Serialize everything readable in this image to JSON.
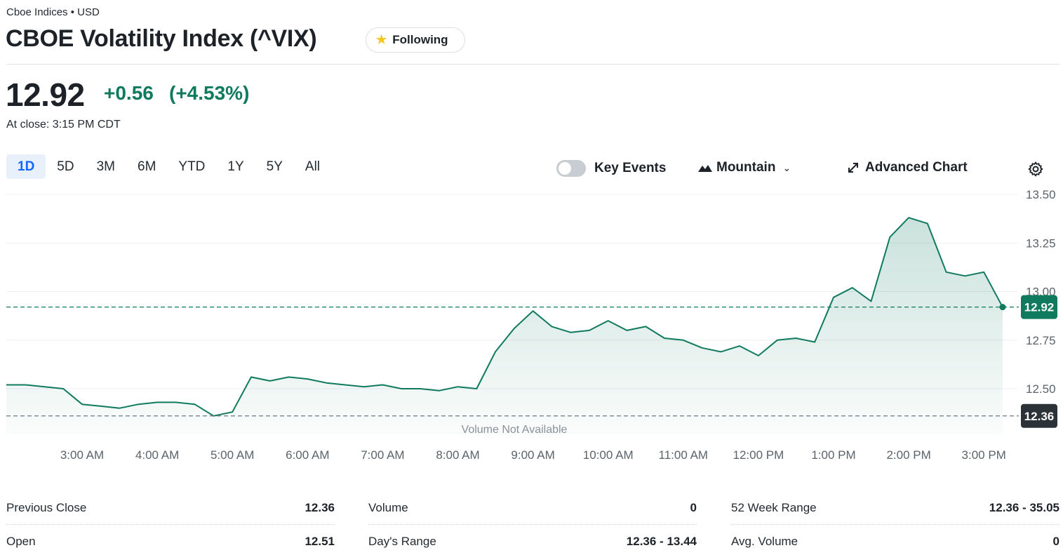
{
  "header": {
    "exchange": "Cboe Indices • USD",
    "title": "CBOE Volatility Index (^VIX)",
    "follow_label": "Following"
  },
  "quote": {
    "price": "12.92",
    "change": "+0.56",
    "change_pct": "(+4.53%)",
    "close_time": "At close: 3:15 PM CDT"
  },
  "ranges": [
    "1D",
    "5D",
    "3M",
    "6M",
    "YTD",
    "1Y",
    "5Y",
    "All"
  ],
  "active_range": "1D",
  "toolbar": {
    "key_events_label": "Key Events",
    "chart_type_label": "Mountain",
    "advanced_label": "Advanced Chart"
  },
  "colors": {
    "accent": "#0f7a5e",
    "active_tab": "#0f69ff",
    "prev_close_line": "#6e7780"
  },
  "chart_data": {
    "type": "area",
    "y_ticks": [
      "13.50",
      "13.25",
      "13.00",
      "12.75",
      "12.50"
    ],
    "x_ticks": [
      "3:00 AM",
      "4:00 AM",
      "5:00 AM",
      "6:00 AM",
      "7:00 AM",
      "8:00 AM",
      "9:00 AM",
      "10:00 AM",
      "11:00 AM",
      "12:00 PM",
      "1:00 PM",
      "2:00 PM",
      "3:00 PM"
    ],
    "ylim": [
      12.3,
      13.5
    ],
    "current_label": "12.92",
    "prev_close_label": "12.36",
    "current_value": 12.92,
    "prev_close_value": 12.36,
    "volume_note": "Volume Not Available",
    "grid": true,
    "series": [
      {
        "x": [
          "2:00 AM",
          "2:15 AM",
          "2:30 AM",
          "2:45 AM",
          "3:00 AM",
          "3:15 AM",
          "3:30 AM",
          "3:45 AM",
          "4:00 AM",
          "4:15 AM",
          "4:30 AM",
          "4:45 AM",
          "5:00 AM",
          "5:15 AM",
          "5:30 AM",
          "5:45 AM",
          "6:00 AM",
          "6:15 AM",
          "6:30 AM",
          "6:45 AM",
          "7:00 AM",
          "7:15 AM",
          "7:30 AM",
          "7:45 AM",
          "8:00 AM",
          "8:15 AM",
          "8:30 AM",
          "8:45 AM",
          "9:00 AM",
          "9:15 AM",
          "9:30 AM",
          "9:45 AM",
          "10:00 AM",
          "10:15 AM",
          "10:30 AM",
          "10:45 AM",
          "11:00 AM",
          "11:15 AM",
          "11:30 AM",
          "11:45 AM",
          "12:00 PM",
          "12:15 PM",
          "12:30 PM",
          "12:45 PM",
          "1:00 PM",
          "1:15 PM",
          "1:30 PM",
          "1:45 PM",
          "2:00 PM",
          "2:15 PM",
          "2:30 PM",
          "2:45 PM",
          "3:00 PM",
          "3:15 PM"
        ],
        "values": [
          12.52,
          12.52,
          12.51,
          12.5,
          12.42,
          12.41,
          12.4,
          12.42,
          12.43,
          12.43,
          12.42,
          12.36,
          12.38,
          12.56,
          12.54,
          12.56,
          12.55,
          12.53,
          12.52,
          12.51,
          12.52,
          12.5,
          12.5,
          12.49,
          12.51,
          12.5,
          12.69,
          12.81,
          12.9,
          12.82,
          12.79,
          12.8,
          12.85,
          12.8,
          12.82,
          12.76,
          12.75,
          12.71,
          12.69,
          12.72,
          12.67,
          12.75,
          12.76,
          12.74,
          12.97,
          13.02,
          12.95,
          13.28,
          13.38,
          13.35,
          13.1,
          13.08,
          13.1,
          12.92
        ]
      }
    ]
  },
  "stats": [
    {
      "label": "Previous Close",
      "value": "12.36"
    },
    {
      "label": "Open",
      "value": "12.51"
    },
    {
      "label": "Volume",
      "value": "0"
    },
    {
      "label": "Day's Range",
      "value": "12.36 - 13.44"
    },
    {
      "label": "52 Week Range",
      "value": "12.36 - 35.05"
    },
    {
      "label": "Avg. Volume",
      "value": "0"
    }
  ]
}
